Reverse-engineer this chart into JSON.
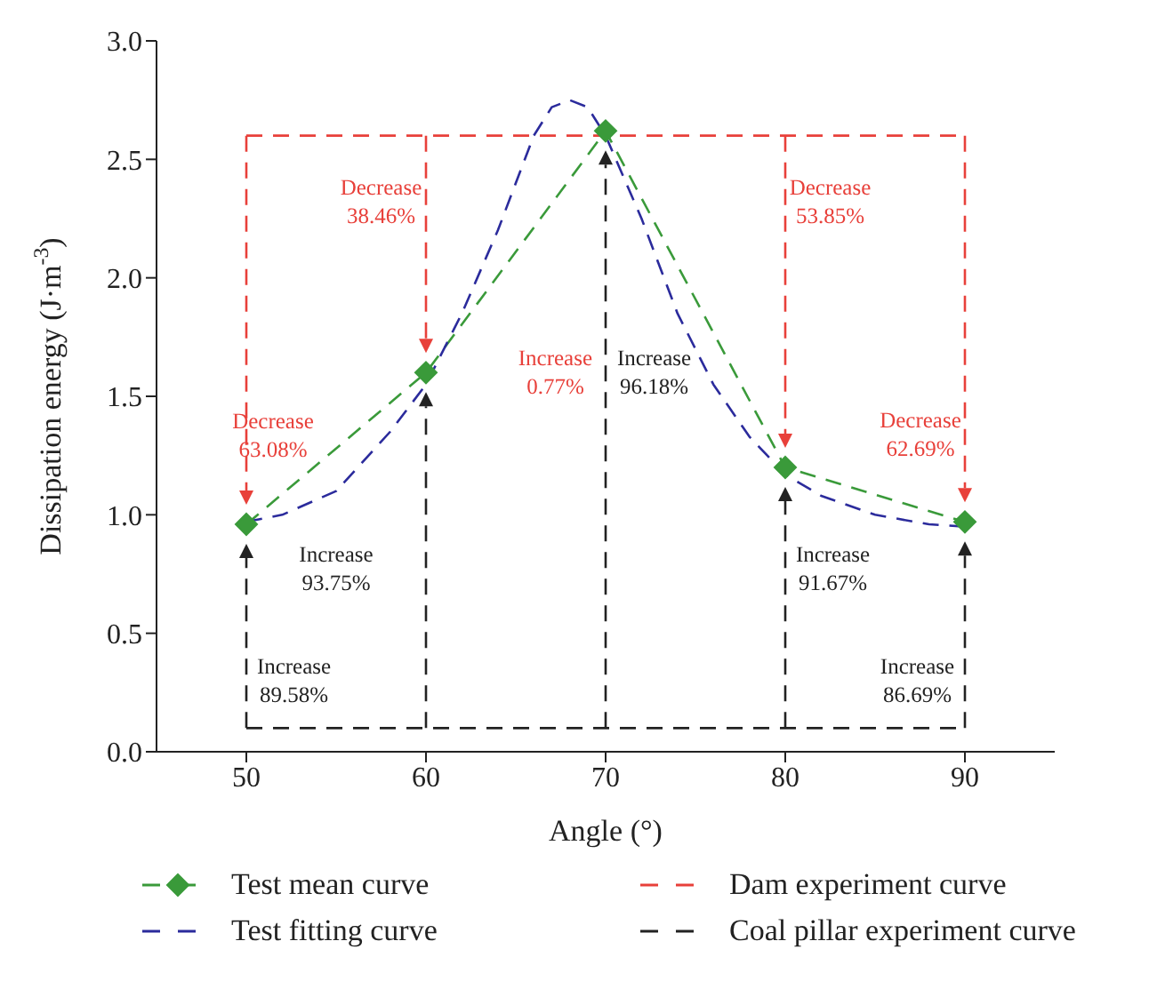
{
  "chart_data": {
    "type": "line",
    "xlabel": "Angle (°)",
    "ylabel": "Dissipation energy (J·m$^{-3}$)",
    "xlim": [
      45,
      95
    ],
    "xticks": [
      50,
      60,
      70,
      80,
      90
    ],
    "ylim": [
      0,
      3
    ],
    "yticks": [
      {
        "value": 0,
        "label": "0.0"
      },
      0.5,
      {
        "value": 1,
        "label": "1.0"
      },
      1.5,
      {
        "value": 2,
        "label": "2.0"
      },
      2.5,
      {
        "value": 3,
        "label": "3.0"
      }
    ],
    "legend": "bottom",
    "series": [
      {
        "name": "Test mean curve",
        "color": "#3a9a3a",
        "marker": "diamond",
        "line_style": "dashed",
        "x": [
          50,
          60,
          70,
          80,
          90
        ],
        "values": [
          0.96,
          1.6,
          2.62,
          1.2,
          0.97
        ]
      },
      {
        "name": "Dam experiment curve",
        "color": "#e8403a",
        "marker": "none",
        "line_style": "dashed",
        "x": [
          50,
          90
        ],
        "values": [
          2.6,
          2.6
        ]
      },
      {
        "name": "Test fitting curve",
        "color": "#2b2b9c",
        "marker": "none",
        "line_style": "dashed",
        "x": [
          50,
          52,
          55,
          58,
          60,
          62,
          64,
          66,
          67,
          68,
          69,
          70,
          72,
          74,
          76,
          78,
          80,
          82,
          85,
          88,
          90
        ],
        "values": [
          0.97,
          1.0,
          1.1,
          1.35,
          1.55,
          1.85,
          2.2,
          2.6,
          2.72,
          2.75,
          2.72,
          2.6,
          2.25,
          1.85,
          1.55,
          1.33,
          1.17,
          1.08,
          1.0,
          0.96,
          0.95
        ]
      },
      {
        "name": "Coal pillar experiment curve",
        "color": "#222222",
        "marker": "none",
        "line_style": "dashed",
        "x": [
          50,
          90
        ],
        "values": [
          0.1,
          0.1
        ]
      }
    ],
    "annotations": [
      {
        "text": "Decrease 63.08%",
        "x": 50,
        "y": 0.96
      },
      "Decrease 38.46%",
      "Increase 0.77%",
      "Decrease 53.85%",
      {
        "text": "Decrease 62.69%",
        "x": 90,
        "y": 0.97
      },
      "Increase 96.18%",
      "Increase 93.75%",
      "Increase 89.58%",
      "Increase 91.67%",
      "Increase 86.69%"
    ]
  }
}
